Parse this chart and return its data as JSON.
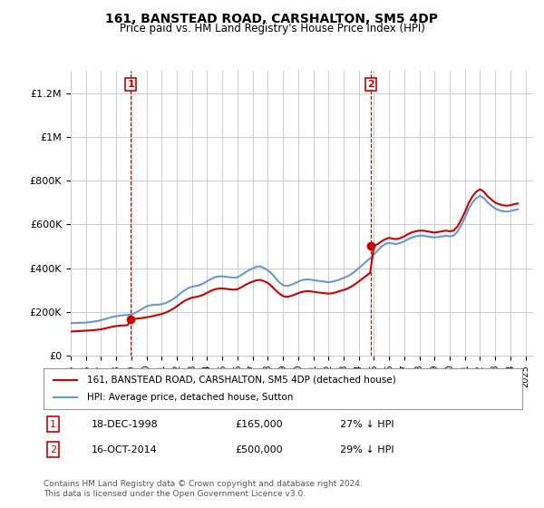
{
  "title": "161, BANSTEAD ROAD, CARSHALTON, SM5 4DP",
  "subtitle": "Price paid vs. HM Land Registry's House Price Index (HPI)",
  "ylabel_ticks": [
    "£0",
    "£200K",
    "£400K",
    "£600K",
    "£800K",
    "£1M",
    "£1.2M"
  ],
  "ytick_vals": [
    0,
    200000,
    400000,
    600000,
    800000,
    1000000,
    1200000
  ],
  "ylim": [
    0,
    1300000
  ],
  "xlim_start": 1995.0,
  "xlim_end": 2025.5,
  "transaction1_date": 1998.96,
  "transaction1_price": 165000,
  "transaction1_label": "1",
  "transaction1_text": "18-DEC-1998    £165,000    27% ↓ HPI",
  "transaction2_date": 2014.79,
  "transaction2_price": 500000,
  "transaction2_label": "2",
  "transaction2_text": "16-OCT-2014    £500,000    29% ↓ HPI",
  "legend_line1": "161, BANSTEAD ROAD, CARSHALTON, SM5 4DP (detached house)",
  "legend_line2": "HPI: Average price, detached house, Sutton",
  "footer": "Contains HM Land Registry data © Crown copyright and database right 2024.\nThis data is licensed under the Open Government Licence v3.0.",
  "line_color_red": "#cc0000",
  "line_color_blue": "#6699cc",
  "background_color": "#ffffff",
  "grid_color": "#cccccc",
  "annotation_box_color": "#cc0000",
  "hpi_data_x": [
    1995.0,
    1995.25,
    1995.5,
    1995.75,
    1996.0,
    1996.25,
    1996.5,
    1996.75,
    1997.0,
    1997.25,
    1997.5,
    1997.75,
    1998.0,
    1998.25,
    1998.5,
    1998.75,
    1999.0,
    1999.25,
    1999.5,
    1999.75,
    2000.0,
    2000.25,
    2000.5,
    2000.75,
    2001.0,
    2001.25,
    2001.5,
    2001.75,
    2002.0,
    2002.25,
    2002.5,
    2002.75,
    2003.0,
    2003.25,
    2003.5,
    2003.75,
    2004.0,
    2004.25,
    2004.5,
    2004.75,
    2005.0,
    2005.25,
    2005.5,
    2005.75,
    2006.0,
    2006.25,
    2006.5,
    2006.75,
    2007.0,
    2007.25,
    2007.5,
    2007.75,
    2008.0,
    2008.25,
    2008.5,
    2008.75,
    2009.0,
    2009.25,
    2009.5,
    2009.75,
    2010.0,
    2010.25,
    2010.5,
    2010.75,
    2011.0,
    2011.25,
    2011.5,
    2011.75,
    2012.0,
    2012.25,
    2012.5,
    2012.75,
    2013.0,
    2013.25,
    2013.5,
    2013.75,
    2014.0,
    2014.25,
    2014.5,
    2014.75,
    2015.0,
    2015.25,
    2015.5,
    2015.75,
    2016.0,
    2016.25,
    2016.5,
    2016.75,
    2017.0,
    2017.25,
    2017.5,
    2017.75,
    2018.0,
    2018.25,
    2018.5,
    2018.75,
    2019.0,
    2019.25,
    2019.5,
    2019.75,
    2020.0,
    2020.25,
    2020.5,
    2020.75,
    2021.0,
    2021.25,
    2021.5,
    2021.75,
    2022.0,
    2022.25,
    2022.5,
    2022.75,
    2023.0,
    2023.25,
    2023.5,
    2023.75,
    2024.0,
    2024.25,
    2024.5
  ],
  "hpi_data_y": [
    148000,
    149000,
    149500,
    150000,
    151000,
    153000,
    155000,
    158000,
    162000,
    167000,
    172000,
    177000,
    180000,
    183000,
    185000,
    186000,
    188000,
    195000,
    205000,
    215000,
    225000,
    230000,
    232000,
    233000,
    235000,
    240000,
    248000,
    258000,
    270000,
    285000,
    298000,
    308000,
    315000,
    318000,
    322000,
    330000,
    340000,
    350000,
    358000,
    362000,
    362000,
    360000,
    358000,
    356000,
    358000,
    368000,
    380000,
    390000,
    398000,
    406000,
    408000,
    400000,
    390000,
    375000,
    355000,
    335000,
    322000,
    318000,
    322000,
    330000,
    338000,
    345000,
    348000,
    348000,
    345000,
    342000,
    340000,
    338000,
    335000,
    338000,
    342000,
    348000,
    355000,
    362000,
    372000,
    385000,
    400000,
    415000,
    430000,
    445000,
    462000,
    480000,
    498000,
    510000,
    515000,
    512000,
    510000,
    515000,
    522000,
    532000,
    540000,
    545000,
    548000,
    548000,
    545000,
    542000,
    540000,
    542000,
    545000,
    548000,
    545000,
    548000,
    565000,
    595000,
    630000,
    670000,
    700000,
    720000,
    730000,
    720000,
    700000,
    685000,
    672000,
    665000,
    660000,
    658000,
    660000,
    665000,
    668000
  ],
  "price_data_x": [
    1995.0,
    1995.25,
    1995.5,
    1995.75,
    1996.0,
    1996.25,
    1996.5,
    1996.75,
    1997.0,
    1997.25,
    1997.5,
    1997.75,
    1998.0,
    1998.25,
    1998.5,
    1998.75,
    1999.0,
    1999.25,
    1999.5,
    1999.75,
    2000.0,
    2000.25,
    2000.5,
    2000.75,
    2001.0,
    2001.25,
    2001.5,
    2001.75,
    2002.0,
    2002.25,
    2002.5,
    2002.75,
    2003.0,
    2003.25,
    2003.5,
    2003.75,
    2004.0,
    2004.25,
    2004.5,
    2004.75,
    2005.0,
    2005.25,
    2005.5,
    2005.75,
    2006.0,
    2006.25,
    2006.5,
    2006.75,
    2007.0,
    2007.25,
    2007.5,
    2007.75,
    2008.0,
    2008.25,
    2008.5,
    2008.75,
    2009.0,
    2009.25,
    2009.5,
    2009.75,
    2010.0,
    2010.25,
    2010.5,
    2010.75,
    2011.0,
    2011.25,
    2011.5,
    2011.75,
    2012.0,
    2012.25,
    2012.5,
    2012.75,
    2013.0,
    2013.25,
    2013.5,
    2013.75,
    2014.0,
    2014.25,
    2014.5,
    2014.75,
    2015.0,
    2015.25,
    2015.5,
    2015.75,
    2016.0,
    2016.25,
    2016.5,
    2016.75,
    2017.0,
    2017.25,
    2017.5,
    2017.75,
    2018.0,
    2018.25,
    2018.5,
    2018.75,
    2019.0,
    2019.25,
    2019.5,
    2019.75,
    2020.0,
    2020.25,
    2020.5,
    2020.75,
    2021.0,
    2021.25,
    2021.5,
    2021.75,
    2022.0,
    2022.25,
    2022.5,
    2022.75,
    2023.0,
    2023.25,
    2023.5,
    2023.75,
    2024.0,
    2024.25,
    2024.5
  ],
  "price_data_y": [
    110000,
    111000,
    112000,
    113000,
    114000,
    115000,
    116000,
    118000,
    120000,
    124000,
    128000,
    132000,
    135000,
    137000,
    138000,
    139000,
    165000,
    168000,
    170000,
    172000,
    175000,
    178000,
    182000,
    186000,
    190000,
    196000,
    204000,
    214000,
    225000,
    238000,
    250000,
    258000,
    265000,
    268000,
    272000,
    278000,
    287000,
    296000,
    303000,
    306000,
    307000,
    305000,
    303000,
    301000,
    303000,
    312000,
    322000,
    331000,
    338000,
    344000,
    346000,
    340000,
    332000,
    318000,
    300000,
    284000,
    272000,
    268000,
    272000,
    278000,
    285000,
    291000,
    294000,
    294000,
    292000,
    289000,
    287000,
    285000,
    283000,
    285000,
    289000,
    295000,
    300000,
    306000,
    315000,
    326000,
    339000,
    352000,
    365000,
    378000,
    500000,
    510000,
    522000,
    532000,
    538000,
    534000,
    532000,
    537000,
    545000,
    555000,
    563000,
    568000,
    571000,
    571000,
    568000,
    565000,
    562000,
    565000,
    568000,
    571000,
    568000,
    571000,
    589000,
    620000,
    656000,
    697000,
    728000,
    749000,
    760000,
    749000,
    728000,
    713000,
    699000,
    692000,
    687000,
    685000,
    687000,
    692000,
    695000
  ]
}
